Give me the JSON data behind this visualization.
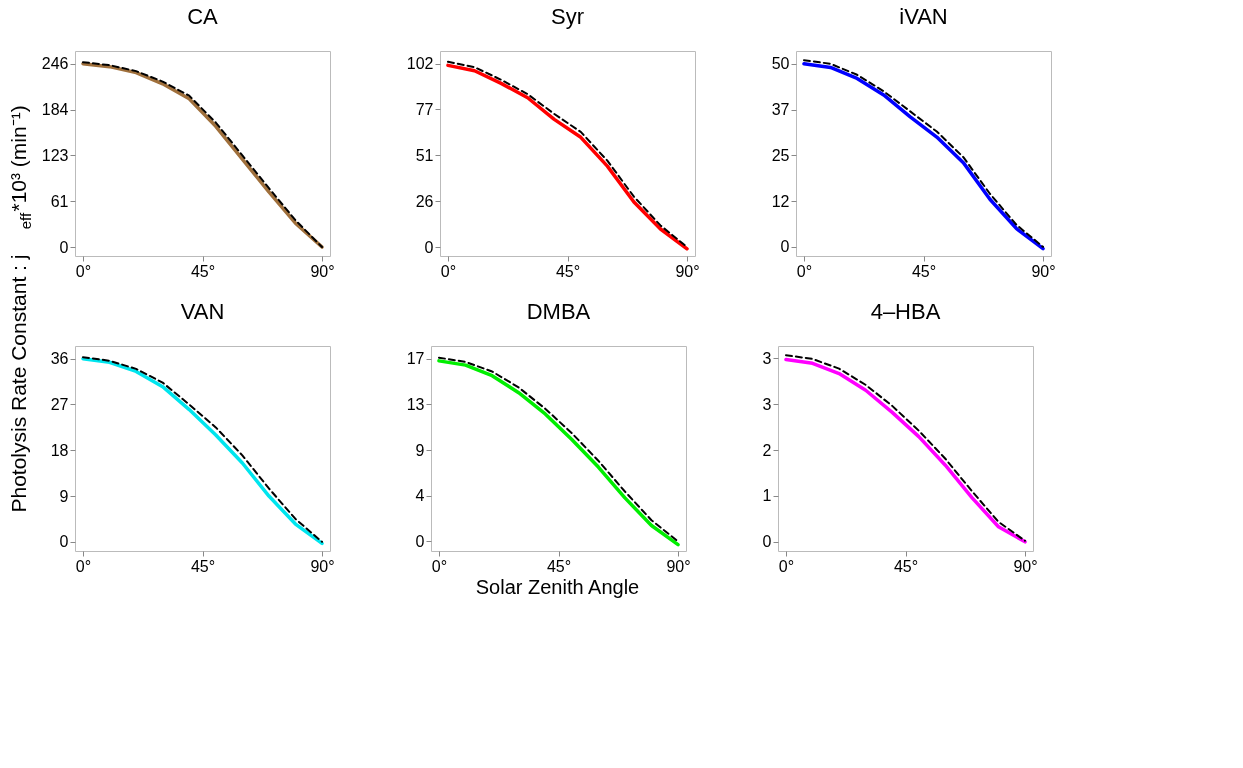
{
  "chart_data": [
    {
      "type": "line",
      "title": "CA",
      "ylabel": "Photolysis Rate Constant : j$_{eff}$*10³ (min⁻¹)",
      "xlim": [
        -3,
        93
      ],
      "xticks": [
        {
          "value": 0,
          "label": "0°"
        },
        {
          "value": 45,
          "label": "45°"
        },
        {
          "value": 90,
          "label": "90°"
        }
      ],
      "ylim": [
        -12,
        263
      ],
      "yticks": [
        0,
        {
          "value": 61.5,
          "label": "61"
        },
        123,
        {
          "value": 184.5,
          "label": "184"
        },
        246
      ],
      "grid": false,
      "x": [
        0,
        10,
        20,
        30,
        40,
        50,
        60,
        70,
        80,
        90
      ],
      "series": [
        {
          "color": "#a0703c",
          "line_style": "solid",
          "values": [
            246,
            242,
            234,
            219,
            199,
            162,
            118,
            74,
            32,
            0
          ]
        },
        {
          "color": "#000000",
          "line_style": "dashed",
          "values": [
            248,
            244,
            236,
            222,
            203,
            167,
            123,
            79,
            36,
            0
          ]
        }
      ]
    },
    {
      "type": "line",
      "title": "Syr",
      "xlim": [
        -3,
        93
      ],
      "xticks": [
        {
          "value": 0,
          "label": "0°"
        },
        {
          "value": 45,
          "label": "45°"
        },
        {
          "value": 90,
          "label": "90°"
        }
      ],
      "ylim": [
        -5,
        109
      ],
      "yticks": [
        0,
        {
          "value": 25.5,
          "label": "26"
        },
        51,
        {
          "value": 76.5,
          "label": "77"
        },
        102
      ],
      "grid": false,
      "x": [
        0,
        10,
        20,
        30,
        40,
        50,
        60,
        70,
        80,
        90
      ],
      "series": [
        {
          "color": "#ff0000",
          "line_style": "solid",
          "values": [
            101,
            98,
            91,
            83,
            71,
            61,
            45,
            25,
            10,
            -1
          ]
        },
        {
          "color": "#000000",
          "line_style": "dashed",
          "values": [
            103,
            100,
            93,
            85,
            74,
            64,
            48,
            28,
            12,
            0
          ]
        }
      ]
    },
    {
      "type": "line",
      "title": "iVAN",
      "xlim": [
        -3,
        93
      ],
      "xticks": [
        {
          "value": 0,
          "label": "0°"
        },
        {
          "value": 45,
          "label": "45°"
        },
        {
          "value": 90,
          "label": "90°"
        }
      ],
      "ylim": [
        -2.5,
        53.5
      ],
      "yticks": [
        0,
        {
          "value": 12.5,
          "label": "12"
        },
        25,
        {
          "value": 37.5,
          "label": "37"
        },
        50
      ],
      "grid": false,
      "x": [
        0,
        10,
        20,
        30,
        40,
        50,
        60,
        70,
        80,
        90
      ],
      "series": [
        {
          "color": "#0000ff",
          "line_style": "solid",
          "values": [
            50,
            49,
            46,
            41.5,
            35.5,
            30,
            23,
            13,
            5,
            -0.5
          ]
        },
        {
          "color": "#000000",
          "line_style": "dashed",
          "values": [
            51,
            50,
            47,
            42.5,
            37,
            31.5,
            24.5,
            14.5,
            6,
            0
          ]
        }
      ]
    },
    {
      "type": "line",
      "title": "VAN",
      "xlim": [
        -3,
        93
      ],
      "xticks": [
        {
          "value": 0,
          "label": "0°"
        },
        {
          "value": 45,
          "label": "45°"
        },
        {
          "value": 90,
          "label": "90°"
        }
      ],
      "ylim": [
        -1.8,
        38.5
      ],
      "yticks": [
        0,
        9,
        18,
        27,
        36
      ],
      "grid": false,
      "x": [
        0,
        10,
        20,
        30,
        40,
        50,
        60,
        70,
        80,
        90
      ],
      "series": [
        {
          "color": "#00e5ee",
          "line_style": "solid",
          "values": [
            36,
            35.3,
            33.5,
            30.5,
            26,
            21,
            15.5,
            9,
            3.5,
            -0.3
          ]
        },
        {
          "color": "#000000",
          "line_style": "dashed",
          "values": [
            36.3,
            35.6,
            34,
            31.3,
            27,
            22.5,
            17,
            10.5,
            4.5,
            0
          ]
        }
      ]
    },
    {
      "type": "line",
      "title": "DMBA",
      "xlabel": "Solar Zenith Angle",
      "xlim": [
        -3,
        93
      ],
      "xticks": [
        {
          "value": 0,
          "label": "0°"
        },
        {
          "value": 45,
          "label": "45°"
        },
        {
          "value": 90,
          "label": "90°"
        }
      ],
      "ylim": [
        -0.9,
        18.4
      ],
      "yticks": [
        0,
        {
          "value": 4.3,
          "label": "4"
        },
        {
          "value": 8.6,
          "label": "9"
        },
        {
          "value": 12.9,
          "label": "13"
        },
        {
          "value": 17.2,
          "label": "17"
        }
      ],
      "grid": false,
      "x": [
        0,
        10,
        20,
        30,
        40,
        50,
        60,
        70,
        80,
        90
      ],
      "series": [
        {
          "color": "#00ee00",
          "line_style": "solid",
          "values": [
            17,
            16.6,
            15.6,
            14,
            12,
            9.6,
            7,
            4.1,
            1.5,
            -0.3
          ]
        },
        {
          "color": "#000000",
          "line_style": "dashed",
          "values": [
            17.3,
            16.9,
            16,
            14.5,
            12.5,
            10.2,
            7.6,
            4.7,
            2,
            0
          ]
        }
      ]
    },
    {
      "type": "line",
      "title": "4–HBA",
      "xlim": [
        -3,
        93
      ],
      "xticks": [
        {
          "value": 0,
          "label": "0°"
        },
        {
          "value": 45,
          "label": "45°"
        },
        {
          "value": 90,
          "label": "90°"
        }
      ],
      "ylim": [
        -0.17,
        3.63
      ],
      "yticks": [
        0,
        {
          "value": 0.85,
          "label": "1"
        },
        {
          "value": 1.7,
          "label": "2"
        },
        {
          "value": 2.55,
          "label": "3"
        },
        {
          "value": 3.4,
          "label": "3"
        }
      ],
      "grid": false,
      "x": [
        0,
        10,
        20,
        30,
        40,
        50,
        60,
        70,
        80,
        90
      ],
      "series": [
        {
          "color": "#ff00ff",
          "line_style": "solid",
          "values": [
            3.38,
            3.31,
            3.12,
            2.81,
            2.4,
            1.95,
            1.42,
            0.82,
            0.28,
            0
          ]
        },
        {
          "color": "#000000",
          "line_style": "dashed",
          "values": [
            3.46,
            3.39,
            3.21,
            2.91,
            2.52,
            2.06,
            1.54,
            0.94,
            0.37,
            0.02
          ]
        }
      ]
    }
  ]
}
